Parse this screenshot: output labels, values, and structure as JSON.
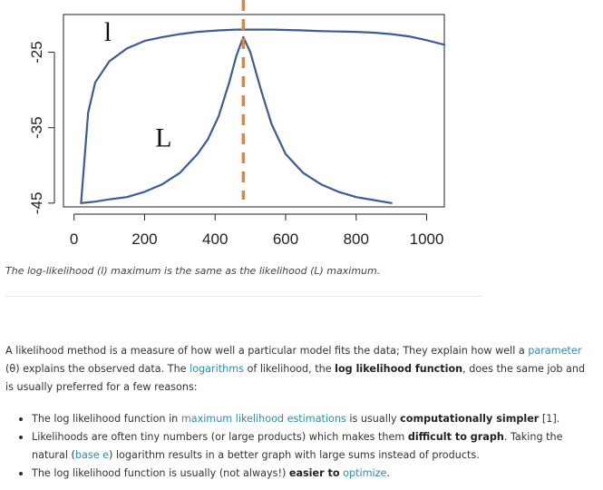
{
  "chart_data": {
    "type": "line",
    "x": [
      20,
      40,
      60,
      100,
      150,
      200,
      250,
      300,
      350,
      380,
      410,
      440,
      460,
      480,
      500,
      530,
      560,
      600,
      650,
      700,
      750,
      800,
      850,
      900,
      950,
      1000,
      1050
    ],
    "series": [
      {
        "name": "l",
        "values": [
          -45,
          -33,
          -29,
          -26.2,
          -24.5,
          -23.5,
          -23,
          -22.6,
          -22.3,
          -22.2,
          -22.1,
          -22.05,
          -22.0,
          -22.0,
          -22.0,
          -22.0,
          -22.0,
          -22.05,
          -22.1,
          -22.2,
          -22.25,
          -22.3,
          -22.4,
          -22.6,
          -22.9,
          -23.4,
          -24.0
        ]
      },
      {
        "name": "L",
        "values": [
          -45,
          -44.9,
          -44.8,
          -44.5,
          -44.2,
          -43.5,
          -42.5,
          -41,
          -38.5,
          -36.5,
          -33.5,
          -29,
          -25.5,
          -23,
          -25,
          -30,
          -34.5,
          -38.5,
          -41,
          -42.5,
          -43.5,
          -44.2,
          -44.6,
          -45,
          null,
          null,
          null
        ]
      }
    ],
    "vline_x": 480,
    "xlim": [
      -30,
      1050
    ],
    "ylim": [
      -45.5,
      -20
    ],
    "xticks": [
      0,
      200,
      400,
      600,
      800,
      1000
    ],
    "yticks": [
      -45,
      -35,
      -25
    ],
    "ytick_labels": [
      "-45",
      "-35",
      "-25"
    ],
    "series_labels": [
      {
        "text": "l",
        "x": 85,
        "y": -23.5
      },
      {
        "text": "L",
        "x": 230,
        "y": -37.5
      }
    ],
    "title": "",
    "xlabel": "",
    "ylabel": "",
    "grid": false,
    "colors": {
      "line": "#3d5a94",
      "vline": "#e8823a"
    }
  },
  "caption": "The log-likelihood (l) maximum is the same as the likelihood (L) maximum.",
  "intro": {
    "t1": "A likelihood method is a measure of how well a particular model fits the data; They explain how well a ",
    "link1": "parameter",
    "t2": " (θ) explains the observed data. The ",
    "link2": "logarithms",
    "t3": " of likelihood, the ",
    "b1": "log likelihood function",
    "t4": ", does the same job and is usually preferred for a few reasons:"
  },
  "bullets": {
    "b1": {
      "t1": "The log likelihood function in ",
      "link1": "maximum likelihood estimations",
      "t2": " is usually ",
      "bold1": "computationally simpler",
      "t3": " [1]."
    },
    "b2": {
      "t1": "Likelihoods are often tiny numbers (or large products) which makes them ",
      "bold1": "difficult to graph",
      "t2": ". Taking the natural (",
      "link1": "base e",
      "t3": ") logarithm results in a better graph with large sums instead of products."
    },
    "b3": {
      "t1": "The log likelihood function is usually (not always!) ",
      "bold1": "easier to",
      "t2": " ",
      "link1": "optimize",
      "t3": "."
    }
  }
}
